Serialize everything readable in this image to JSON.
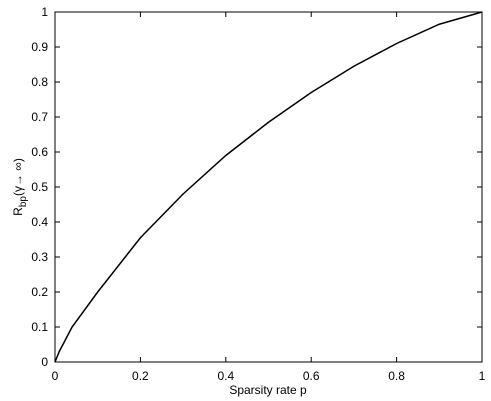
{
  "chart_data": {
    "type": "line",
    "xlabel": "Sparsity rate p",
    "ylabel": {
      "main": "R",
      "sub": "bp",
      "rest": "(γ→ ∞)"
    },
    "x": [
      0,
      0.01,
      0.04,
      0.1,
      0.2,
      0.3,
      0.4,
      0.5,
      0.6,
      0.7,
      0.8,
      0.9,
      1.0
    ],
    "series": [
      {
        "color": "#000000",
        "values": [
          0,
          0.03,
          0.1,
          0.2,
          0.355,
          0.48,
          0.59,
          0.685,
          0.77,
          0.845,
          0.91,
          0.965,
          1.0
        ]
      }
    ],
    "xlim": [
      0,
      1
    ],
    "xticks": [
      0,
      0.2,
      0.4,
      0.6,
      0.8,
      1
    ],
    "ylim": [
      0,
      1
    ],
    "yticks": [
      0,
      0.1,
      0.2,
      0.3,
      0.4,
      0.5,
      0.6,
      0.7,
      0.8,
      0.9,
      1
    ]
  }
}
